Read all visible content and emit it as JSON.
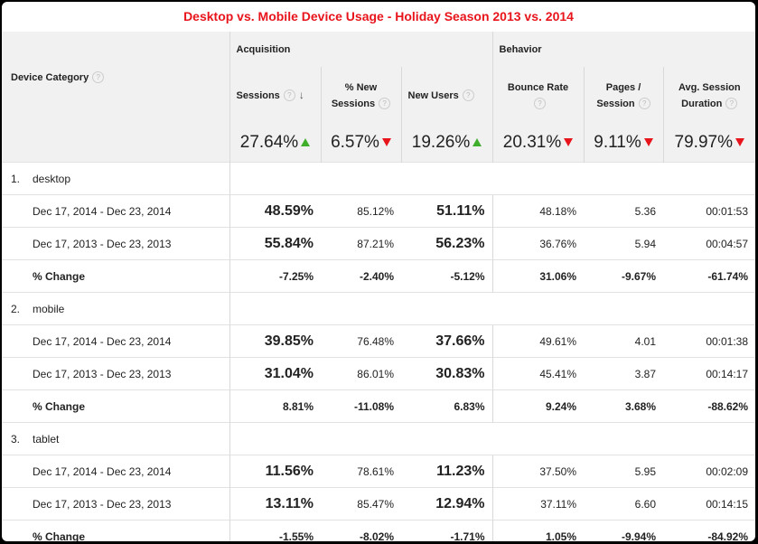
{
  "title": "Desktop vs. Mobile Device Usage - Holiday Season 2013 vs. 2014",
  "groups": {
    "acquisition": "Acquisition",
    "behavior": "Behavior"
  },
  "columns": {
    "device_category": "Device Category",
    "sessions": "Sessions",
    "pct_new_sessions_1": "% New",
    "pct_new_sessions_2": "Sessions",
    "new_users": "New Users",
    "bounce_rate": "Bounce Rate",
    "pages_session_1": "Pages /",
    "pages_session_2": "Session",
    "avg_session_1": "Avg. Session",
    "avg_session_2": "Duration"
  },
  "help_glyph": "?",
  "sort_glyph": "↓",
  "summary": [
    {
      "value": "27.64%",
      "trend": "up"
    },
    {
      "value": "6.57%",
      "trend": "down"
    },
    {
      "value": "19.26%",
      "trend": "up"
    },
    {
      "value": "20.31%",
      "trend": "down"
    },
    {
      "value": "9.11%",
      "trend": "down"
    },
    {
      "value": "79.97%",
      "trend": "down"
    }
  ],
  "colors": {
    "title": "#e8141b",
    "up": "#3fae2a",
    "down": "#e8141b"
  },
  "devices": [
    {
      "index": "1.",
      "name": "desktop",
      "rows": [
        {
          "label": "Dec 17, 2014 - Dec 23, 2014",
          "values": [
            "48.59%",
            "85.12%",
            "51.11%",
            "48.18%",
            "5.36",
            "00:01:53"
          ]
        },
        {
          "label": "Dec 17, 2013 - Dec 23, 2013",
          "values": [
            "55.84%",
            "87.21%",
            "56.23%",
            "36.76%",
            "5.94",
            "00:04:57"
          ]
        },
        {
          "label": "% Change",
          "values": [
            "-7.25%",
            "-2.40%",
            "-5.12%",
            "31.06%",
            "-9.67%",
            "-61.74%"
          ]
        }
      ]
    },
    {
      "index": "2.",
      "name": "mobile",
      "rows": [
        {
          "label": "Dec 17, 2014 - Dec 23, 2014",
          "values": [
            "39.85%",
            "76.48%",
            "37.66%",
            "49.61%",
            "4.01",
            "00:01:38"
          ]
        },
        {
          "label": "Dec 17, 2013 - Dec 23, 2013",
          "values": [
            "31.04%",
            "86.01%",
            "30.83%",
            "45.41%",
            "3.87",
            "00:14:17"
          ]
        },
        {
          "label": "% Change",
          "values": [
            "8.81%",
            "-11.08%",
            "6.83%",
            "9.24%",
            "3.68%",
            "-88.62%"
          ]
        }
      ]
    },
    {
      "index": "3.",
      "name": "tablet",
      "rows": [
        {
          "label": "Dec 17, 2014 - Dec 23, 2014",
          "values": [
            "11.56%",
            "78.61%",
            "11.23%",
            "37.50%",
            "5.95",
            "00:02:09"
          ]
        },
        {
          "label": "Dec 17, 2013 - Dec 23, 2013",
          "values": [
            "13.11%",
            "85.47%",
            "12.94%",
            "37.11%",
            "6.60",
            "00:14:15"
          ]
        },
        {
          "label": "% Change",
          "values": [
            "-1.55%",
            "-8.02%",
            "-1.71%",
            "1.05%",
            "-9.94%",
            "-84.92%"
          ]
        }
      ]
    }
  ]
}
